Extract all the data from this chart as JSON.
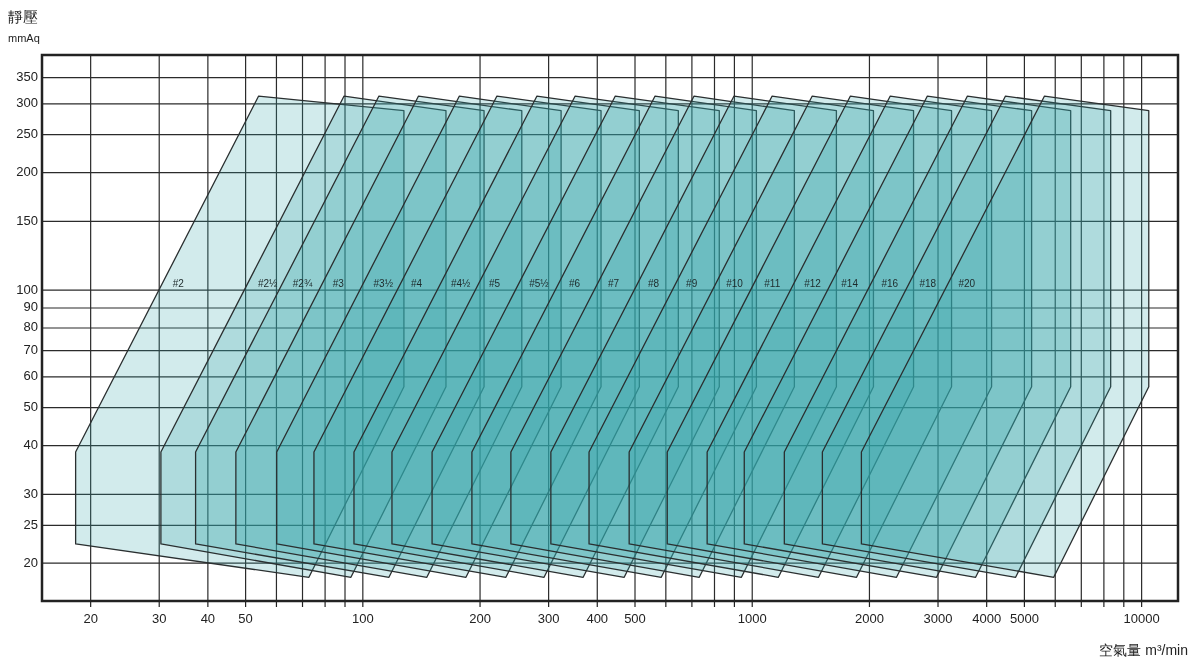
{
  "chart_data": {
    "type": "area",
    "ylabel": "靜壓\nmmAq",
    "xlabel": "空氣量 m³/min",
    "log": "xy",
    "grid": true,
    "xlim": [
      15,
      12400
    ],
    "ylim": [
      16,
      400
    ],
    "xticks": [
      20,
      30,
      40,
      50,
      {
        "value": 60,
        "label": null
      },
      {
        "value": 70,
        "label": null
      },
      {
        "value": 80,
        "label": null
      },
      {
        "value": 90,
        "label": null
      },
      100,
      200,
      300,
      400,
      500,
      {
        "value": 600,
        "label": null
      },
      {
        "value": 700,
        "label": null
      },
      {
        "value": 800,
        "label": null
      },
      {
        "value": 900,
        "label": null
      },
      1000,
      2000,
      3000,
      4000,
      5000,
      {
        "value": 6000,
        "label": null
      },
      {
        "value": 7000,
        "label": null
      },
      {
        "value": 8000,
        "label": null
      },
      {
        "value": 9000,
        "label": null
      },
      10000
    ],
    "yticks": [
      20,
      25,
      30,
      40,
      50,
      60,
      70,
      80,
      90,
      100,
      150,
      200,
      250,
      300,
      350
    ],
    "series": [
      {
        "name": "#2",
        "color": "#30a5a8",
        "x": [
          18.3,
          18.3,
          54,
          127.5,
          127.5,
          72.7
        ],
        "values": [
          22.4,
          38.5,
          314,
          288,
          56.6,
          18.4
        ]
      },
      {
        "name": "#2½",
        "color": "#30a5a8",
        "x": [
          30.3,
          30.3,
          89.5,
          163.5,
          163.5,
          93.2
        ],
        "values": [
          22.4,
          38.5,
          314,
          288,
          56.6,
          18.4
        ]
      },
      {
        "name": "#2¾",
        "color": "#30a5a8",
        "x": [
          37.2,
          37.2,
          110,
          204.8,
          204.8,
          116.7
        ],
        "values": [
          22.4,
          38.5,
          314,
          288,
          56.6,
          18.4
        ]
      },
      {
        "name": "#3",
        "color": "#30a5a8",
        "x": [
          47.2,
          47.2,
          139,
          256,
          256,
          146
        ],
        "values": [
          22.4,
          38.5,
          314,
          288,
          56.6,
          18.4
        ]
      },
      {
        "name": "#3½",
        "color": "#30a5a8",
        "x": [
          60.1,
          60.1,
          177,
          323,
          323,
          184
        ],
        "values": [
          22.4,
          38.5,
          314,
          288,
          56.6,
          18.4
        ]
      },
      {
        "name": "#4",
        "color": "#30a5a8",
        "x": [
          74.9,
          74.9,
          221,
          409,
          409,
          233
        ],
        "values": [
          22.4,
          38.5,
          314,
          288,
          56.6,
          18.4
        ]
      },
      {
        "name": "#4½",
        "color": "#30a5a8",
        "x": [
          94.9,
          94.9,
          280,
          513,
          513,
          292
        ],
        "values": [
          22.4,
          38.5,
          314,
          288,
          56.6,
          18.4
        ]
      },
      {
        "name": "#5",
        "color": "#30a5a8",
        "x": [
          118.8,
          118.8,
          351,
          646,
          646,
          368
        ],
        "values": [
          22.4,
          38.5,
          314,
          288,
          56.6,
          18.4
        ]
      },
      {
        "name": "#5½",
        "color": "#30a5a8",
        "x": [
          150.6,
          150.6,
          445,
          823,
          823,
          469
        ],
        "values": [
          22.4,
          38.5,
          314,
          288,
          56.6,
          18.4
        ]
      },
      {
        "name": "#6",
        "color": "#30a5a8",
        "x": [
          190.6,
          190.6,
          563,
          1025,
          1025,
          584
        ],
        "values": [
          22.4,
          38.5,
          314,
          288,
          56.6,
          18.4
        ]
      },
      {
        "name": "#7",
        "color": "#30a5a8",
        "x": [
          240,
          240,
          709,
          1283,
          1283,
          731
        ],
        "values": [
          22.4,
          38.5,
          314,
          288,
          56.6,
          18.4
        ]
      },
      {
        "name": "#8",
        "color": "#30a5a8",
        "x": [
          304,
          304,
          898,
          1645,
          1645,
          938
        ],
        "values": [
          22.4,
          38.5,
          314,
          288,
          56.6,
          18.4
        ]
      },
      {
        "name": "#9",
        "color": "#30a5a8",
        "x": [
          381,
          381,
          1125,
          2048,
          2048,
          1167
        ],
        "values": [
          22.4,
          38.5,
          314,
          288,
          56.6,
          18.4
        ]
      },
      {
        "name": "#10",
        "color": "#30a5a8",
        "x": [
          483,
          483,
          1426,
          2596,
          2596,
          1480
        ],
        "values": [
          22.4,
          38.5,
          314,
          288,
          56.6,
          18.4
        ]
      },
      {
        "name": "#11",
        "color": "#30a5a8",
        "x": [
          605,
          605,
          1787,
          3250,
          3250,
          1853
        ],
        "values": [
          22.4,
          38.5,
          314,
          288,
          56.6,
          18.4
        ]
      },
      {
        "name": "#12",
        "color": "#30a5a8",
        "x": [
          766,
          766,
          2262,
          4118,
          4118,
          2347
        ],
        "values": [
          22.4,
          38.5,
          314,
          288,
          56.6,
          18.4
        ]
      },
      {
        "name": "#14",
        "color": "#30a5a8",
        "x": [
          954,
          954,
          2817,
          5218,
          5218,
          2974
        ],
        "values": [
          22.4,
          38.5,
          314,
          288,
          56.6,
          18.4
        ]
      },
      {
        "name": "#16",
        "color": "#30a5a8",
        "x": [
          1209,
          1209,
          3570,
          6574,
          6574,
          3747
        ],
        "values": [
          22.4,
          38.5,
          314,
          288,
          56.6,
          18.4
        ]
      },
      {
        "name": "#18",
        "color": "#30a5a8",
        "x": [
          1514,
          1514,
          4471,
          8328,
          8328,
          4747
        ],
        "values": [
          22.4,
          38.5,
          314,
          288,
          56.6,
          18.4
        ]
      },
      {
        "name": "#20",
        "color": "#30a5a8",
        "x": [
          1907,
          1907,
          5631,
          10432,
          10432,
          5946
        ],
        "values": [
          22.4,
          38.5,
          314,
          288,
          56.6,
          18.4
        ]
      }
    ]
  }
}
